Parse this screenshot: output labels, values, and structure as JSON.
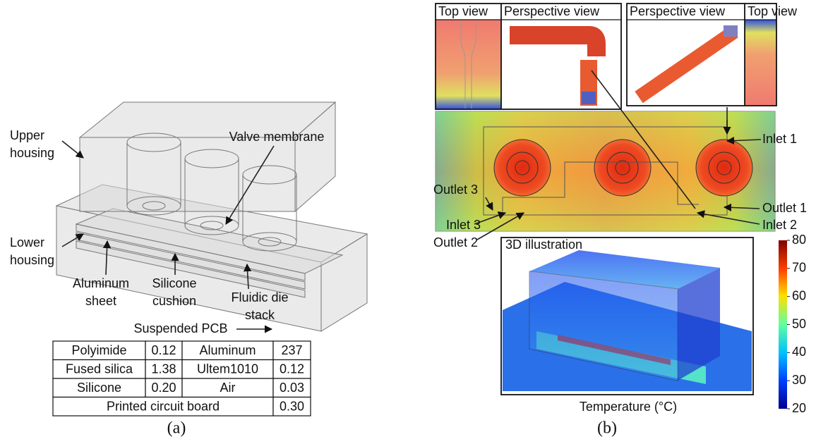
{
  "panel_a": {
    "labels": [
      [
        "Upper",
        "housing"
      ],
      [
        "Valve membrane"
      ],
      [
        "Lower",
        "housing"
      ],
      [
        "Aluminum",
        "sheet"
      ],
      [
        "Silicone",
        "cushion"
      ],
      [
        "Fluidic die",
        "stack"
      ],
      [
        "Suspended PCB"
      ]
    ],
    "table": {
      "rows": [
        [
          "Polyimide",
          "0.12",
          "Aluminum",
          "237"
        ],
        [
          "Fused silica",
          "1.38",
          "Ultem1010",
          "0.12"
        ],
        [
          "Silicone",
          "0.20",
          "Air",
          "0.03"
        ],
        [
          "Printed circuit board",
          "0.30"
        ]
      ]
    },
    "caption": "(a)"
  },
  "panel_b": {
    "inset_titles": [
      "Top view",
      "Perspective view",
      "Perspective view",
      "Top view"
    ],
    "ports": [
      "Inlet 1",
      "Outlet 3",
      "Outlet 1",
      "Inlet 3",
      "Inlet 2",
      "Outlet 2"
    ],
    "illustration_title": "3D illustration",
    "colorbar": {
      "label": "Temperature (°C)",
      "lim": [
        20,
        80
      ],
      "ticks": [
        20,
        30,
        40,
        50,
        60,
        70,
        80
      ]
    },
    "caption": "(b)"
  }
}
